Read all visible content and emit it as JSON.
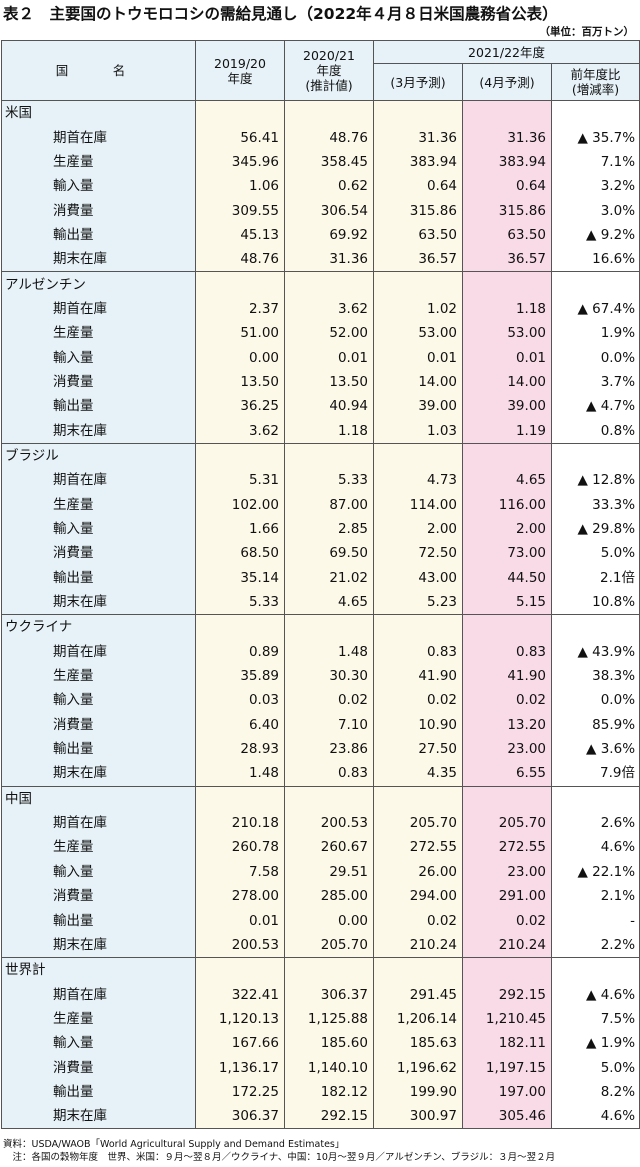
{
  "title": "表２　主要国のトウモロコシの需給見通し（2022年４月８日米国農務省公表）",
  "unit": "（単位：百万トン）",
  "header": {
    "country": "国　名",
    "col_2019": "2019/20\n年度",
    "col_2020": "2020/21\n年度\n(推計値)",
    "group_2021": "2021/22年度",
    "col_mar": "(3月予測)",
    "col_apr": "(4月予測)",
    "col_chg": "前年度比\n(増減率)"
  },
  "groups": [
    {
      "name": "米国",
      "rows": [
        {
          "item": "期首在庫",
          "v2019": "56.41",
          "v2020": "48.76",
          "mar": "31.36",
          "apr": "31.36",
          "chg": "▲ 35.7%"
        },
        {
          "item": "生産量",
          "v2019": "345.96",
          "v2020": "358.45",
          "mar": "383.94",
          "apr": "383.94",
          "chg": "7.1%"
        },
        {
          "item": "輸入量",
          "v2019": "1.06",
          "v2020": "0.62",
          "mar": "0.64",
          "apr": "0.64",
          "chg": "3.2%"
        },
        {
          "item": "消費量",
          "v2019": "309.55",
          "v2020": "306.54",
          "mar": "315.86",
          "apr": "315.86",
          "chg": "3.0%"
        },
        {
          "item": "輸出量",
          "v2019": "45.13",
          "v2020": "69.92",
          "mar": "63.50",
          "apr": "63.50",
          "chg": "▲ 9.2%"
        },
        {
          "item": "期末在庫",
          "v2019": "48.76",
          "v2020": "31.36",
          "mar": "36.57",
          "apr": "36.57",
          "chg": "16.6%"
        }
      ]
    },
    {
      "name": "アルゼンチン",
      "rows": [
        {
          "item": "期首在庫",
          "v2019": "2.37",
          "v2020": "3.62",
          "mar": "1.02",
          "apr": "1.18",
          "chg": "▲ 67.4%"
        },
        {
          "item": "生産量",
          "v2019": "51.00",
          "v2020": "52.00",
          "mar": "53.00",
          "apr": "53.00",
          "chg": "1.9%"
        },
        {
          "item": "輸入量",
          "v2019": "0.00",
          "v2020": "0.01",
          "mar": "0.01",
          "apr": "0.01",
          "chg": "0.0%"
        },
        {
          "item": "消費量",
          "v2019": "13.50",
          "v2020": "13.50",
          "mar": "14.00",
          "apr": "14.00",
          "chg": "3.7%"
        },
        {
          "item": "輸出量",
          "v2019": "36.25",
          "v2020": "40.94",
          "mar": "39.00",
          "apr": "39.00",
          "chg": "▲ 4.7%"
        },
        {
          "item": "期末在庫",
          "v2019": "3.62",
          "v2020": "1.18",
          "mar": "1.03",
          "apr": "1.19",
          "chg": "0.8%"
        }
      ]
    },
    {
      "name": "ブラジル",
      "rows": [
        {
          "item": "期首在庫",
          "v2019": "5.31",
          "v2020": "5.33",
          "mar": "4.73",
          "apr": "4.65",
          "chg": "▲ 12.8%"
        },
        {
          "item": "生産量",
          "v2019": "102.00",
          "v2020": "87.00",
          "mar": "114.00",
          "apr": "116.00",
          "chg": "33.3%"
        },
        {
          "item": "輸入量",
          "v2019": "1.66",
          "v2020": "2.85",
          "mar": "2.00",
          "apr": "2.00",
          "chg": "▲ 29.8%"
        },
        {
          "item": "消費量",
          "v2019": "68.50",
          "v2020": "69.50",
          "mar": "72.50",
          "apr": "73.00",
          "chg": "5.0%"
        },
        {
          "item": "輸出量",
          "v2019": "35.14",
          "v2020": "21.02",
          "mar": "43.00",
          "apr": "44.50",
          "chg": "2.1倍"
        },
        {
          "item": "期末在庫",
          "v2019": "5.33",
          "v2020": "4.65",
          "mar": "5.23",
          "apr": "5.15",
          "chg": "10.8%"
        }
      ]
    },
    {
      "name": "ウクライナ",
      "rows": [
        {
          "item": "期首在庫",
          "v2019": "0.89",
          "v2020": "1.48",
          "mar": "0.83",
          "apr": "0.83",
          "chg": "▲ 43.9%"
        },
        {
          "item": "生産量",
          "v2019": "35.89",
          "v2020": "30.30",
          "mar": "41.90",
          "apr": "41.90",
          "chg": "38.3%"
        },
        {
          "item": "輸入量",
          "v2019": "0.03",
          "v2020": "0.02",
          "mar": "0.02",
          "apr": "0.02",
          "chg": "0.0%"
        },
        {
          "item": "消費量",
          "v2019": "6.40",
          "v2020": "7.10",
          "mar": "10.90",
          "apr": "13.20",
          "chg": "85.9%"
        },
        {
          "item": "輸出量",
          "v2019": "28.93",
          "v2020": "23.86",
          "mar": "27.50",
          "apr": "23.00",
          "chg": "▲ 3.6%"
        },
        {
          "item": "期末在庫",
          "v2019": "1.48",
          "v2020": "0.83",
          "mar": "4.35",
          "apr": "6.55",
          "chg": "7.9倍"
        }
      ]
    },
    {
      "name": "中国",
      "rows": [
        {
          "item": "期首在庫",
          "v2019": "210.18",
          "v2020": "200.53",
          "mar": "205.70",
          "apr": "205.70",
          "chg": "2.6%"
        },
        {
          "item": "生産量",
          "v2019": "260.78",
          "v2020": "260.67",
          "mar": "272.55",
          "apr": "272.55",
          "chg": "4.6%"
        },
        {
          "item": "輸入量",
          "v2019": "7.58",
          "v2020": "29.51",
          "mar": "26.00",
          "apr": "23.00",
          "chg": "▲ 22.1%"
        },
        {
          "item": "消費量",
          "v2019": "278.00",
          "v2020": "285.00",
          "mar": "294.00",
          "apr": "291.00",
          "chg": "2.1%"
        },
        {
          "item": "輸出量",
          "v2019": "0.01",
          "v2020": "0.00",
          "mar": "0.02",
          "apr": "0.02",
          "chg": "-"
        },
        {
          "item": "期末在庫",
          "v2019": "200.53",
          "v2020": "205.70",
          "mar": "210.24",
          "apr": "210.24",
          "chg": "2.2%"
        }
      ]
    },
    {
      "name": "世界計",
      "rows": [
        {
          "item": "期首在庫",
          "v2019": "322.41",
          "v2020": "306.37",
          "mar": "291.45",
          "apr": "292.15",
          "chg": "▲ 4.6%"
        },
        {
          "item": "生産量",
          "v2019": "1,120.13",
          "v2020": "1,125.88",
          "mar": "1,206.14",
          "apr": "1,210.45",
          "chg": "7.5%"
        },
        {
          "item": "輸入量",
          "v2019": "167.66",
          "v2020": "185.60",
          "mar": "185.63",
          "apr": "182.11",
          "chg": "▲ 1.9%"
        },
        {
          "item": "消費量",
          "v2019": "1,136.17",
          "v2020": "1,140.10",
          "mar": "1,196.62",
          "apr": "1,197.15",
          "chg": "5.0%"
        },
        {
          "item": "輸出量",
          "v2019": "172.25",
          "v2020": "182.12",
          "mar": "199.90",
          "apr": "197.00",
          "chg": "8.2%"
        },
        {
          "item": "期末在庫",
          "v2019": "306.37",
          "v2020": "292.15",
          "mar": "300.97",
          "apr": "305.46",
          "chg": "4.6%"
        }
      ]
    }
  ],
  "notes": {
    "source": "資料：USDA/WAOB「World Agricultural Supply and Demand Estimates」",
    "note": "　注：各国の穀物年度　世界、米国：９月～翌８月／ウクライナ、中国：10月～翌９月／アルゼンチン、ブラジル：３月～翌２月"
  }
}
